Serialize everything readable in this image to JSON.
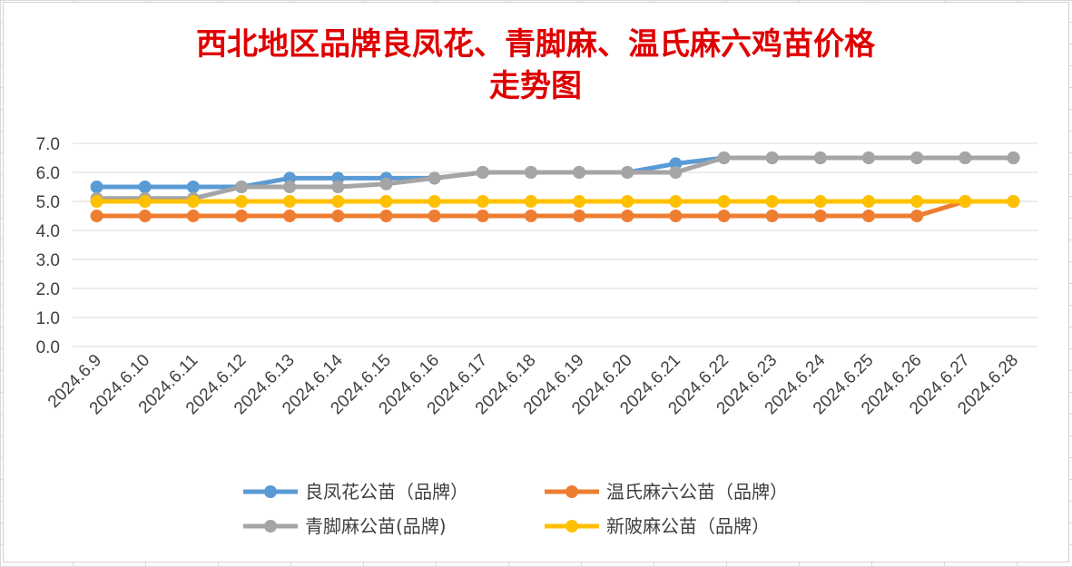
{
  "chart_data": {
    "type": "line",
    "title_lines": [
      "西北地区品牌良凤花、青脚麻、温氏麻六鸡苗价格",
      "走势图"
    ],
    "categories": [
      "2024.6.9",
      "2024.6.10",
      "2024.6.11",
      "2024.6.12",
      "2024.6.13",
      "2024.6.14",
      "2024.6.15",
      "2024.6.16",
      "2024.6.17",
      "2024.6.18",
      "2024.6.19",
      "2024.6.20",
      "2024.6.21",
      "2024.6.22",
      "2024.6.23",
      "2024.6.24",
      "2024.6.25",
      "2024.6.26",
      "2024.6.27",
      "2024.6.28"
    ],
    "ylim": [
      0,
      7
    ],
    "yticks": [
      "0.0",
      "1.0",
      "2.0",
      "3.0",
      "4.0",
      "5.0",
      "6.0",
      "7.0"
    ],
    "grid": true,
    "legend_position": "bottom",
    "series": [
      {
        "name": "良凤花公苗（品牌）",
        "color": "#5b9bd5",
        "values": [
          5.5,
          5.5,
          5.5,
          5.5,
          5.8,
          5.8,
          5.8,
          5.8,
          6.0,
          6.0,
          6.0,
          6.0,
          6.3,
          6.5,
          6.5,
          6.5,
          6.5,
          6.5,
          6.5,
          6.5
        ]
      },
      {
        "name": "温氏麻六公苗（品牌）",
        "color": "#ed7d31",
        "values": [
          4.5,
          4.5,
          4.5,
          4.5,
          4.5,
          4.5,
          4.5,
          4.5,
          4.5,
          4.5,
          4.5,
          4.5,
          4.5,
          4.5,
          4.5,
          4.5,
          4.5,
          4.5,
          5.0,
          5.0
        ]
      },
      {
        "name": "青脚麻公苗(品牌)",
        "color": "#a5a5a5",
        "values": [
          5.1,
          5.1,
          5.1,
          5.5,
          5.5,
          5.5,
          5.6,
          5.8,
          6.0,
          6.0,
          6.0,
          6.0,
          6.0,
          6.5,
          6.5,
          6.5,
          6.5,
          6.5,
          6.5,
          6.5
        ]
      },
      {
        "name": "新陂麻公苗（品牌）",
        "color": "#ffc000",
        "values": [
          5.0,
          5.0,
          5.0,
          5.0,
          5.0,
          5.0,
          5.0,
          5.0,
          5.0,
          5.0,
          5.0,
          5.0,
          5.0,
          5.0,
          5.0,
          5.0,
          5.0,
          5.0,
          5.0,
          5.0
        ]
      }
    ]
  }
}
